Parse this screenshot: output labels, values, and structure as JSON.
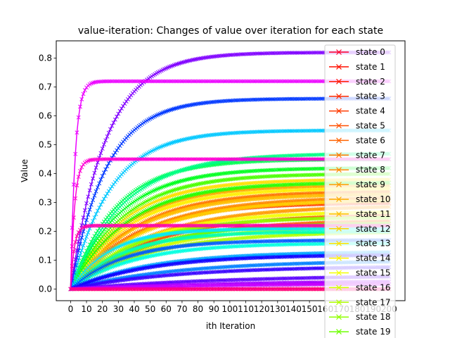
{
  "chart_data": {
    "type": "line",
    "title": "value-iteration: Changes of value over iteration for each state",
    "xlabel": "ith Iteration",
    "ylabel": "Value",
    "xlim": [
      -9,
      210
    ],
    "ylim": [
      -0.04,
      0.86
    ],
    "xticks": [
      0,
      10,
      20,
      30,
      40,
      50,
      60,
      70,
      80,
      90,
      100,
      110,
      120,
      130,
      140,
      150,
      160,
      170,
      180,
      190,
      200
    ],
    "yticks": [
      0.0,
      0.1,
      0.2,
      0.3,
      0.4,
      0.5,
      0.6,
      0.7,
      0.8
    ],
    "grid": false,
    "legend_position": "right",
    "marker": "x",
    "iterations": 200,
    "series": [
      {
        "name": "state 0",
        "color": "#ff0029",
        "final": 0.0,
        "rate": 0.05
      },
      {
        "name": "state 1",
        "color": "#ff0f00",
        "final": 0.0,
        "rate": 0.05
      },
      {
        "name": "state 2",
        "color": "#ff1c00",
        "final": 0.0,
        "rate": 0.05
      },
      {
        "name": "state 3",
        "color": "#ff2b00",
        "final": 0.0,
        "rate": 0.05
      },
      {
        "name": "state 4",
        "color": "#ff3a00",
        "final": 0.3,
        "rate": 0.025
      },
      {
        "name": "state 5",
        "color": "#ff4f00",
        "final": 0.26,
        "rate": 0.02
      },
      {
        "name": "state 6",
        "color": "#ff6300",
        "final": 0.24,
        "rate": 0.02
      },
      {
        "name": "state 7",
        "color": "#ff7700",
        "final": 0.34,
        "rate": 0.025
      },
      {
        "name": "state 8",
        "color": "#ff8a00",
        "final": 0.32,
        "rate": 0.022
      },
      {
        "name": "state 9",
        "color": "#ff9c00",
        "final": 0.29,
        "rate": 0.02
      },
      {
        "name": "state 10",
        "color": "#ffad00",
        "final": 0.36,
        "rate": 0.028
      },
      {
        "name": "state 11",
        "color": "#ffbe00",
        "final": 0.33,
        "rate": 0.025
      },
      {
        "name": "state 12",
        "color": "#ffcf00",
        "final": 0.31,
        "rate": 0.022
      },
      {
        "name": "state 13",
        "color": "#ffe000",
        "final": 0.38,
        "rate": 0.03
      },
      {
        "name": "state 14",
        "color": "#fff000",
        "final": 0.35,
        "rate": 0.027
      },
      {
        "name": "state 15",
        "color": "#f3ff00",
        "final": 0.27,
        "rate": 0.022
      },
      {
        "name": "state 16",
        "color": "#d0ff00",
        "final": 0.22,
        "rate": 0.02
      },
      {
        "name": "state 17",
        "color": "#b0ff00",
        "final": 0.2,
        "rate": 0.02
      },
      {
        "name": "state 18",
        "color": "#8fff00",
        "final": 0.25,
        "rate": 0.024
      },
      {
        "name": "state 19",
        "color": "#6dff00",
        "final": 0.23,
        "rate": 0.022
      },
      {
        "name": "",
        "color": "#4bff00",
        "final": 0.4,
        "rate": 0.03
      },
      {
        "name": "",
        "color": "#29ff00",
        "final": 0.37,
        "rate": 0.028
      },
      {
        "name": "",
        "color": "#00ff1f",
        "final": 0.42,
        "rate": 0.032
      },
      {
        "name": "",
        "color": "#00ff52",
        "final": 0.45,
        "rate": 0.035
      },
      {
        "name": "",
        "color": "#00ff85",
        "final": 0.47,
        "rate": 0.03
      },
      {
        "name": "",
        "color": "#00ffb8",
        "final": 0.2,
        "rate": 0.03
      },
      {
        "name": "",
        "color": "#00ffe0",
        "final": 0.16,
        "rate": 0.025
      },
      {
        "name": "",
        "color": "#00e8ff",
        "final": 0.21,
        "rate": 0.04
      },
      {
        "name": "",
        "color": "#00c8ff",
        "final": 0.55,
        "rate": 0.04
      },
      {
        "name": "",
        "color": "#00a4ff",
        "final": 0.13,
        "rate": 0.02
      },
      {
        "name": "",
        "color": "#0080ff",
        "final": 0.1,
        "rate": 0.015
      },
      {
        "name": "",
        "color": "#005cff",
        "final": 0.17,
        "rate": 0.03
      },
      {
        "name": "",
        "color": "#0038ff",
        "final": 0.66,
        "rate": 0.045
      },
      {
        "name": "",
        "color": "#1400ff",
        "final": 0.12,
        "rate": 0.02
      },
      {
        "name": "",
        "color": "#3800ff",
        "final": 0.08,
        "rate": 0.015
      },
      {
        "name": "",
        "color": "#5c00ff",
        "final": 0.05,
        "rate": 0.01
      },
      {
        "name": "",
        "color": "#8000ff",
        "final": 0.82,
        "rate": 0.045
      },
      {
        "name": "",
        "color": "#a400ff",
        "final": 0.03,
        "rate": 0.01
      },
      {
        "name": "",
        "color": "#c800ff",
        "final": 0.02,
        "rate": 0.01
      },
      {
        "name": "",
        "color": "#ec00ff",
        "final": 0.72,
        "rate": 0.35
      },
      {
        "name": "",
        "color": "#ff00d4",
        "final": 0.45,
        "rate": 0.4
      },
      {
        "name": "",
        "color": "#ff00b0",
        "final": 0.22,
        "rate": 0.45
      },
      {
        "name": "",
        "color": "#ff008c",
        "final": 0.0,
        "rate": 0.05
      }
    ]
  }
}
